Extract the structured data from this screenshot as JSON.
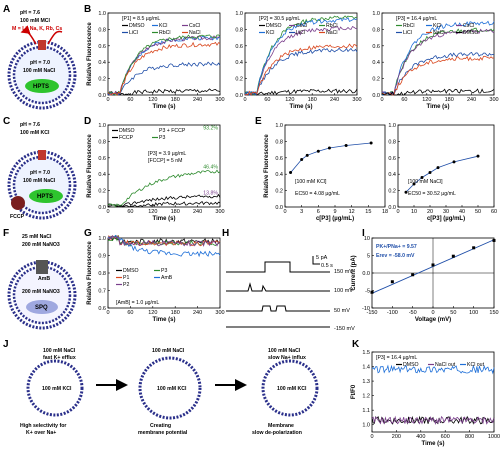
{
  "panel_letters": [
    "A",
    "B",
    "C",
    "D",
    "E",
    "F",
    "G",
    "H",
    "I",
    "J",
    "K"
  ],
  "schematics": {
    "A": {
      "out_ph": "pH = 7.6",
      "out_salt": "100 mM MCl",
      "m_list": "M = Li, Na, K, Rb, Cs",
      "in_ph": "pH = 7.0",
      "in_salt": "100 mM NaCl",
      "dye": "HPTS",
      "plus": "+"
    },
    "C": {
      "out_ph": "pH = 7.6",
      "out_salt": "100 mM KCl",
      "in_ph": "pH = 7.0",
      "in_salt": "100 mM NaCl",
      "dye": "HPTS",
      "fccp": "FCCP"
    },
    "F": {
      "out_salt1": "25 mM NaCl",
      "out_salt2": "200 mM NaNO3",
      "amb": "AmB",
      "in_salt": "200 mM NaNO3",
      "dye": "SPQ"
    },
    "J": [
      {
        "title1": "100 mM NaCl",
        "title2": "fast K+ efflux",
        "in_salt": "100 mM KCl",
        "caption": [
          "High selectivity for",
          "K+ over Na+"
        ]
      },
      {
        "title1": "100 mM NaCl",
        "in_salt": "100 mM KCl",
        "caption": [
          "Creating",
          "membrane potential"
        ]
      },
      {
        "title1": "100 mM NaCl",
        "title2": "slow Na+ influx",
        "in_salt": "100 mM KCl",
        "caption": [
          "Membrane",
          "slow de-polarization"
        ]
      }
    ]
  },
  "colors": {
    "DMSO": "#000000",
    "LiCl": "#1f4ea8",
    "NaCl": "#d9471e",
    "KCl": "#1e6fd8",
    "RbCl": "#2e8b2e",
    "CsCl": "#7a3e8c",
    "FCCP": "#000000",
    "P3": "#2e8b2e",
    "P3+FCCP": "#1f4ea8",
    "P1": "#d9471e",
    "P2": "#7a3e8c",
    "AmB": "#1e6fd8"
  },
  "chart_data": [
    {
      "panel": "B1",
      "type": "line",
      "annotation": "[P1] = 8.5 µg/mL",
      "xlabel": "Time (s)",
      "ylabel": "Relative Fluorescence",
      "xlim": [
        0,
        300
      ],
      "ylim": [
        0,
        1.0
      ],
      "xticks": [
        0,
        60,
        120,
        180,
        240,
        300
      ],
      "yticks": [
        0.0,
        0.2,
        0.4,
        0.6,
        0.8,
        1.0
      ],
      "series": [
        {
          "name": "DMSO",
          "final": 0.05
        },
        {
          "name": "KCl",
          "final": 0.7
        },
        {
          "name": "CsCl",
          "final": 0.7
        },
        {
          "name": "LiCl",
          "final": 0.38
        },
        {
          "name": "RbCl",
          "final": 0.72
        },
        {
          "name": "NaCl",
          "final": 0.62
        }
      ]
    },
    {
      "panel": "B2",
      "type": "line",
      "annotation": "[P2] = 30.5 µg/mL",
      "xlabel": "Time (s)",
      "ylabel": "",
      "xlim": [
        0,
        300
      ],
      "ylim": [
        0,
        1.0
      ],
      "xticks": [
        0,
        60,
        120,
        180,
        240,
        300
      ],
      "yticks": [
        0.0,
        0.2,
        0.4,
        0.6,
        0.8,
        1.0
      ],
      "series": [
        {
          "name": "DMSO",
          "final": 0.05
        },
        {
          "name": "CsCl",
          "final": 0.82
        },
        {
          "name": "RbCl",
          "final": 0.95
        },
        {
          "name": "KCl",
          "final": 0.92
        },
        {
          "name": "LiCl",
          "final": 0.55
        },
        {
          "name": "NaCl",
          "final": 0.6
        }
      ]
    },
    {
      "panel": "B3",
      "type": "line",
      "annotation": "[P3] = 16.4 µg/mL",
      "xlabel": "Time (s)",
      "ylabel": "",
      "xlim": [
        0,
        300
      ],
      "ylim": [
        0,
        1.0
      ],
      "xticks": [
        0,
        60,
        120,
        180,
        240,
        300
      ],
      "yticks": [
        0.0,
        0.2,
        0.4,
        0.6,
        0.8,
        1.0
      ],
      "series": [
        {
          "name": "RbCl",
          "final": 0.8
        },
        {
          "name": "KCl",
          "final": 0.88
        },
        {
          "name": "CsCl",
          "final": 0.78
        },
        {
          "name": "LiCl",
          "final": 0.5
        },
        {
          "name": "NaCl",
          "final": 0.45
        },
        {
          "name": "DMSO",
          "final": 0.05
        }
      ]
    },
    {
      "panel": "D",
      "type": "line",
      "annotation": "[P3] = 3.9 µg/mL\n[FCCP] = 5 nM",
      "xlabel": "Time (s)",
      "ylabel": "Relative Fluorescence",
      "xlim": [
        0,
        300
      ],
      "ylim": [
        0,
        1.0
      ],
      "xticks": [
        0,
        60,
        120,
        180,
        240,
        300
      ],
      "yticks": [
        0.0,
        0.2,
        0.4,
        0.6,
        0.8,
        1.0
      ],
      "end_labels": [
        "93.2%",
        "46.4%",
        "13.8%"
      ],
      "series": [
        {
          "name": "DMSO",
          "final": 0.05
        },
        {
          "name": "P3 + FCCP",
          "final": 0.93
        },
        {
          "name": "FCCP",
          "final": 0.14
        },
        {
          "name": "P3",
          "final": 0.46
        }
      ]
    },
    {
      "panel": "E1",
      "type": "scatter",
      "annotation": "[100 mM KCl]",
      "ec50": "EC50 = 4.08 µg/mL",
      "xlabel": "c[P3] (µg/mL)",
      "ylabel": "Relative Fluorescence",
      "xlim": [
        0,
        18
      ],
      "ylim": [
        0,
        1.0
      ],
      "xticks": [
        0,
        3,
        6,
        9,
        12,
        15,
        18
      ],
      "yticks": [
        0.0,
        0.2,
        0.4,
        0.6,
        0.8,
        1.0
      ],
      "x": [
        1,
        3,
        4,
        6,
        8,
        11,
        15.5
      ],
      "y": [
        0.42,
        0.58,
        0.63,
        0.68,
        0.72,
        0.75,
        0.78
      ]
    },
    {
      "panel": "E2",
      "type": "scatter",
      "annotation": "[100 mM NaCl]",
      "ec50": "EC50 = 30.52 µg/mL",
      "xlabel": "c[P3] (µg/mL)",
      "ylabel": "",
      "xlim": [
        0,
        60
      ],
      "ylim": [
        0,
        1.0
      ],
      "xticks": [
        0,
        10,
        20,
        30,
        40,
        50,
        60
      ],
      "yticks": [
        0.0,
        0.2,
        0.4,
        0.6,
        0.8,
        1.0
      ],
      "x": [
        5,
        10,
        15,
        20,
        25,
        35,
        50
      ],
      "y": [
        0.18,
        0.28,
        0.36,
        0.42,
        0.48,
        0.55,
        0.62
      ]
    },
    {
      "panel": "G",
      "type": "line",
      "annotation": "[AmB] = 1.0 µg/mL",
      "xlabel": "Time (s)",
      "ylabel": "Relative Fluorescence",
      "xlim": [
        0,
        300
      ],
      "ylim": [
        0.6,
        1.0
      ],
      "xticks": [
        0,
        60,
        120,
        180,
        240,
        300
      ],
      "yticks": [
        0.6,
        0.7,
        0.8,
        0.9,
        1.0
      ],
      "series": [
        {
          "name": "DMSO",
          "final": 0.98
        },
        {
          "name": "P3",
          "final": 0.97
        },
        {
          "name": "P1",
          "final": 0.97
        },
        {
          "name": "AmB",
          "final": 0.91
        },
        {
          "name": "P2",
          "final": 0.97
        }
      ]
    },
    {
      "panel": "H",
      "type": "trace",
      "scale_current": "5 pA",
      "scale_time": "0.5 s",
      "voltages": [
        "150 mV",
        "100 mV",
        "50 mV",
        "-150 mV"
      ]
    },
    {
      "panel": "I",
      "type": "scatter",
      "annotation1": "PK+/PNa+ = 9.57",
      "annotation2": "Erev = -58.0 mV",
      "xlabel": "Voltage (mV)",
      "ylabel": "Current (pA)",
      "xlim": [
        -150,
        150
      ],
      "ylim": [
        -10,
        10
      ],
      "xticks": [
        -150,
        -100,
        -50,
        0,
        50,
        100,
        150
      ],
      "yticks": [
        -10,
        -5,
        0,
        5,
        10
      ],
      "x": [
        -150,
        -100,
        -50,
        0,
        50,
        100,
        150
      ],
      "y": [
        -5.5,
        -2.5,
        -0.5,
        2.3,
        4.8,
        7.2,
        9.3
      ]
    },
    {
      "panel": "K",
      "type": "line",
      "annotation": "[P3] = 16.4 µg/mL",
      "xlabel": "Time (s)",
      "ylabel": "Ft/F0",
      "xlim": [
        0,
        1000
      ],
      "ylim": [
        0.95,
        1.5
      ],
      "xticks": [
        0,
        200,
        400,
        600,
        800,
        1000
      ],
      "yticks": [
        1.0,
        1.1,
        1.2,
        1.3,
        1.4,
        1.5
      ],
      "series": [
        {
          "name": "DMSO",
          "level": 1.03
        },
        {
          "name": "NaCl out",
          "level": 1.03
        },
        {
          "name": "KCl out",
          "level": 1.38
        }
      ]
    }
  ]
}
